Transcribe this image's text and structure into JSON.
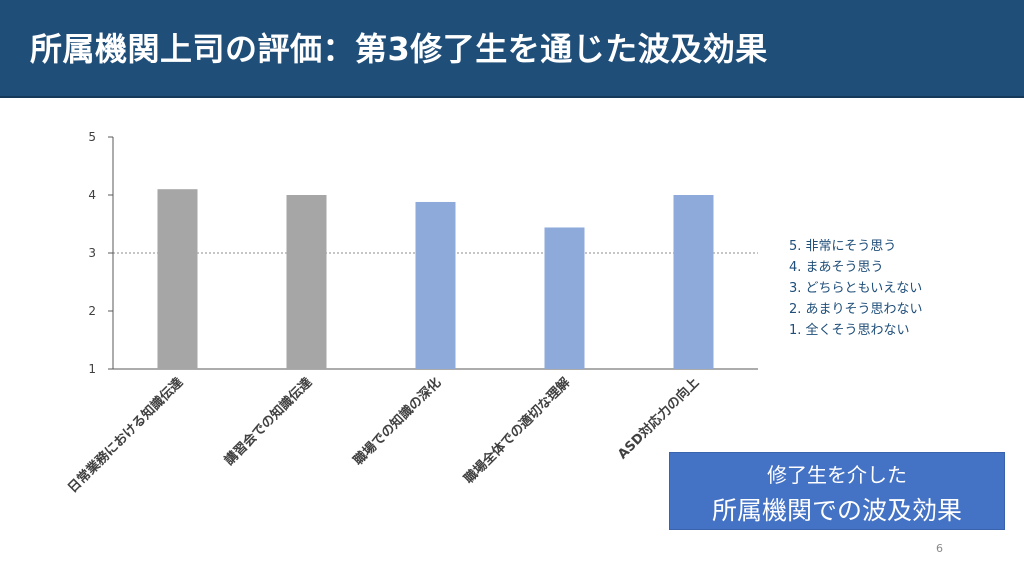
{
  "slide": {
    "title": "所属機関上司の評価：第3修了生を通じた波及効果",
    "page_number": "6"
  },
  "legend": {
    "items": [
      "5. 非常にそう思う",
      "4. まあそう思う",
      "3. どちらともいえない",
      "2. あまりそう思わない",
      "1. 全くそう思わない"
    ]
  },
  "callout": {
    "line1": "修了生を介した",
    "line2": "所属機関での波及効果"
  },
  "chart_data": {
    "type": "bar",
    "categories": [
      "日常業務における知識伝達",
      "講習会での知識伝達",
      "職場での知識の深化",
      "職場全体での適切な理解",
      "ASD対応力の向上"
    ],
    "values": [
      4.1,
      4.0,
      3.88,
      3.44,
      4.0
    ],
    "bar_colors": [
      "#a6a6a6",
      "#a6a6a6",
      "#8eaadb",
      "#8eaadb",
      "#8eaadb"
    ],
    "ylim": [
      1,
      5
    ],
    "yticks": [
      1,
      2,
      3,
      4,
      5
    ],
    "reference_line": 3,
    "grid": false
  }
}
